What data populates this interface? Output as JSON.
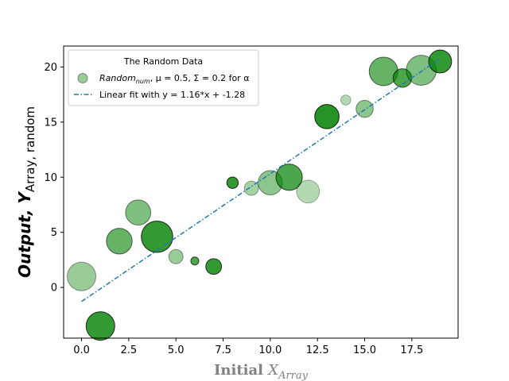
{
  "chart_data": {
    "type": "scatter",
    "xlabel_main": "Initial ",
    "xlabel_math": "X",
    "xlabel_sub": "Array",
    "ylabel_main": "Output, Y",
    "ylabel_sub": "Array, random",
    "xlim": [
      -0.95,
      19.95
    ],
    "ylim": [
      -4.6,
      21.9
    ],
    "xticks": [
      0.0,
      2.5,
      5.0,
      7.5,
      10.0,
      12.5,
      15.0,
      17.5
    ],
    "xtick_labels": [
      "0.0",
      "2.5",
      "5.0",
      "7.5",
      "10.0",
      "12.5",
      "15.0",
      "17.5"
    ],
    "yticks": [
      0,
      5,
      10,
      15,
      20
    ],
    "ytick_labels": [
      "0",
      "5",
      "10",
      "15",
      "20"
    ],
    "grid": false,
    "legend": {
      "placement": "top-left",
      "title": "The Random Data",
      "scatter_label_math": "Random",
      "scatter_label_sub": "num",
      "scatter_label_rest": ", μ = 0.5, Σ = 0.2 for α",
      "line_label": "Linear fit with y = 1.16*x + -1.28"
    },
    "series": [
      {
        "kind": "scatter",
        "color": "#008000",
        "points": [
          {
            "x": 0,
            "y": 1.0,
            "size": 1.0,
            "alpha": 0.4
          },
          {
            "x": 1,
            "y": -3.5,
            "size": 1.0,
            "alpha": 0.8
          },
          {
            "x": 2,
            "y": 4.2,
            "size": 0.9,
            "alpha": 0.6
          },
          {
            "x": 3,
            "y": 6.8,
            "size": 0.88,
            "alpha": 0.5
          },
          {
            "x": 4,
            "y": 4.6,
            "size": 1.1,
            "alpha": 0.8
          },
          {
            "x": 5,
            "y": 2.8,
            "size": 0.5,
            "alpha": 0.4
          },
          {
            "x": 6,
            "y": 2.4,
            "size": 0.28,
            "alpha": 0.7
          },
          {
            "x": 7,
            "y": 1.9,
            "size": 0.55,
            "alpha": 0.8
          },
          {
            "x": 8,
            "y": 9.5,
            "size": 0.4,
            "alpha": 0.8
          },
          {
            "x": 9,
            "y": 9.0,
            "size": 0.5,
            "alpha": 0.35
          },
          {
            "x": 10,
            "y": 9.5,
            "size": 0.85,
            "alpha": 0.45
          },
          {
            "x": 11,
            "y": 10.0,
            "size": 0.92,
            "alpha": 0.7
          },
          {
            "x": 12,
            "y": 8.7,
            "size": 0.8,
            "alpha": 0.3
          },
          {
            "x": 13,
            "y": 15.5,
            "size": 0.85,
            "alpha": 0.85
          },
          {
            "x": 14,
            "y": 17.0,
            "size": 0.35,
            "alpha": 0.3
          },
          {
            "x": 15,
            "y": 16.2,
            "size": 0.6,
            "alpha": 0.45
          },
          {
            "x": 16,
            "y": 19.6,
            "size": 1.0,
            "alpha": 0.6
          },
          {
            "x": 17,
            "y": 19.0,
            "size": 0.65,
            "alpha": 0.7
          },
          {
            "x": 18,
            "y": 19.7,
            "size": 1.05,
            "alpha": 0.5
          },
          {
            "x": 19,
            "y": 20.5,
            "size": 0.8,
            "alpha": 0.8
          }
        ]
      },
      {
        "kind": "line",
        "style": "dashdot",
        "color": "#1f77b4",
        "slope": 1.16,
        "intercept": -1.28,
        "x": [
          0,
          19
        ]
      }
    ]
  }
}
